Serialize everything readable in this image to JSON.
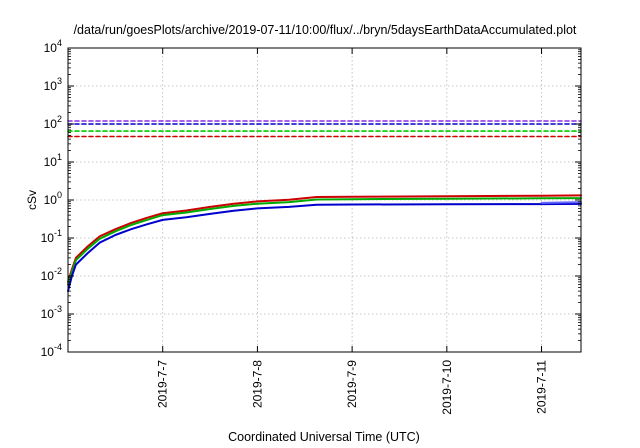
{
  "chart_data": {
    "type": "line",
    "title": "/data/run/goesPlots/archive/2019-07-11/10:00/flux/../bryn/5daysEarthDataAccumulated.plot",
    "xlabel": "Coordinated Universal Time (UTC)",
    "ylabel": "cSv",
    "y_scale": "log",
    "ylim": [
      0.0001,
      10000
    ],
    "y_ticks": [
      {
        "value": 0.0001,
        "base": "10",
        "exp": "-4"
      },
      {
        "value": 0.001,
        "base": "10",
        "exp": "-3"
      },
      {
        "value": 0.01,
        "base": "10",
        "exp": "-2"
      },
      {
        "value": 0.1,
        "base": "10",
        "exp": "-1"
      },
      {
        "value": 1,
        "base": "10",
        "exp": "0"
      },
      {
        "value": 10,
        "base": "10",
        "exp": "1"
      },
      {
        "value": 100,
        "base": "10",
        "exp": "2"
      },
      {
        "value": 1000,
        "base": "10",
        "exp": "3"
      },
      {
        "value": 10000,
        "base": "10",
        "exp": "4"
      }
    ],
    "xlim": [
      "2019-07-06 00:00",
      "2019-07-11 10:00"
    ],
    "x_ticks": [
      "2019-7-7",
      "2019-7-8",
      "2019-7-9",
      "2019-7-10",
      "2019-7-11"
    ],
    "x_tick_values": [
      "2019-07-07 00:00",
      "2019-07-08 00:00",
      "2019-07-09 00:00",
      "2019-07-10 00:00",
      "2019-07-11 00:00"
    ],
    "grid": true,
    "legend": "none",
    "series": [
      {
        "color": "#cc0000",
        "style": "solid",
        "x": [
          "2019-07-06 00:00",
          "2019-07-06 01:00",
          "2019-07-06 02:00",
          "2019-07-06 05:00",
          "2019-07-06 08:00",
          "2019-07-06 12:00",
          "2019-07-06 16:00",
          "2019-07-06 20:00",
          "2019-07-07 00:00",
          "2019-07-07 06:00",
          "2019-07-07 12:00",
          "2019-07-07 18:00",
          "2019-07-08 00:00",
          "2019-07-08 08:00",
          "2019-07-08 15:00",
          "2019-07-09 00:00",
          "2019-07-10 00:00",
          "2019-07-11 00:00",
          "2019-07-11 10:00"
        ],
        "y": [
          0.007,
          0.015,
          0.03,
          0.06,
          0.11,
          0.17,
          0.25,
          0.34,
          0.45,
          0.53,
          0.66,
          0.8,
          0.92,
          1.02,
          1.2,
          1.22,
          1.25,
          1.3,
          1.32
        ]
      },
      {
        "color": "#00aa00",
        "style": "solid",
        "x": [
          "2019-07-06 00:00",
          "2019-07-06 01:00",
          "2019-07-06 02:00",
          "2019-07-06 05:00",
          "2019-07-06 08:00",
          "2019-07-06 12:00",
          "2019-07-06 16:00",
          "2019-07-06 20:00",
          "2019-07-07 00:00",
          "2019-07-07 06:00",
          "2019-07-07 12:00",
          "2019-07-07 18:00",
          "2019-07-08 00:00",
          "2019-07-08 08:00",
          "2019-07-08 15:00",
          "2019-07-09 00:00",
          "2019-07-10 00:00",
          "2019-07-11 00:00",
          "2019-07-11 10:00"
        ],
        "y": [
          0.006,
          0.013,
          0.026,
          0.052,
          0.095,
          0.15,
          0.22,
          0.3,
          0.4,
          0.47,
          0.58,
          0.7,
          0.8,
          0.88,
          1.03,
          1.05,
          1.08,
          1.11,
          1.12
        ]
      },
      {
        "color": "#0000cc",
        "style": "solid",
        "x": [
          "2019-07-06 00:00",
          "2019-07-06 01:00",
          "2019-07-06 02:00",
          "2019-07-06 05:00",
          "2019-07-06 08:00",
          "2019-07-06 12:00",
          "2019-07-06 16:00",
          "2019-07-06 20:00",
          "2019-07-07 00:00",
          "2019-07-07 06:00",
          "2019-07-07 12:00",
          "2019-07-07 18:00",
          "2019-07-08 00:00",
          "2019-07-08 08:00",
          "2019-07-08 15:00",
          "2019-07-09 00:00",
          "2019-07-10 00:00",
          "2019-07-11 00:00",
          "2019-07-11 10:00"
        ],
        "y": [
          0.004,
          0.01,
          0.02,
          0.04,
          0.075,
          0.12,
          0.17,
          0.23,
          0.3,
          0.35,
          0.43,
          0.52,
          0.6,
          0.66,
          0.75,
          0.76,
          0.77,
          0.78,
          0.79
        ]
      },
      {
        "color": "#6666ff",
        "style": "solid",
        "x": [
          "2019-07-11 00:00",
          "2019-07-11 10:00"
        ],
        "y": [
          0.84,
          0.88
        ]
      },
      {
        "color": "#8a2be2",
        "style": "dashed",
        "x": [
          "2019-07-06 00:00",
          "2019-07-11 10:00"
        ],
        "y": [
          120,
          120
        ]
      },
      {
        "color": "#0000cc",
        "style": "dashed",
        "x": [
          "2019-07-06 00:00",
          "2019-07-11 10:00"
        ],
        "y": [
          100,
          100
        ]
      },
      {
        "color": "#00cc00",
        "style": "dashed",
        "x": [
          "2019-07-06 00:00",
          "2019-07-11 10:00"
        ],
        "y": [
          65,
          65
        ]
      },
      {
        "color": "#cc0000",
        "style": "dashed",
        "x": [
          "2019-07-06 00:00",
          "2019-07-11 10:00"
        ],
        "y": [
          47,
          47
        ]
      }
    ]
  }
}
